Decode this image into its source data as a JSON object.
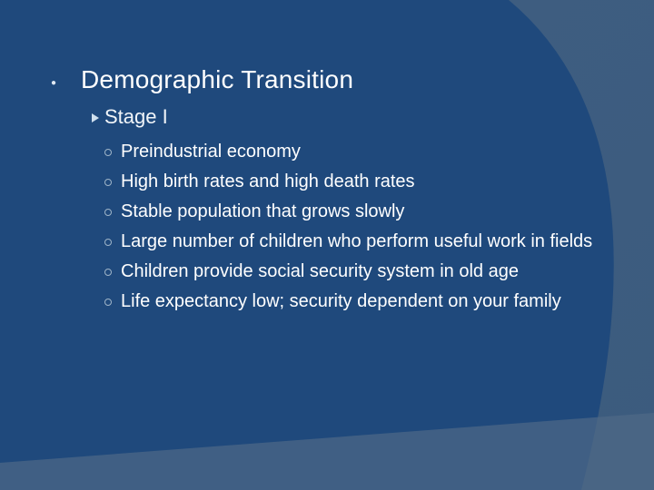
{
  "slide": {
    "title": "Demographic Transition",
    "subtitle": "Stage I",
    "items": [
      "Preindustrial economy",
      "High birth rates and high death rates",
      "Stable population that grows slowly",
      "Large number of children who perform useful work in fields",
      "Children provide social security system in old age",
      "Life expectancy low; security dependent on your family"
    ]
  },
  "colors": {
    "background": "#3b5a7d",
    "panel": "#1e4a7f",
    "text": "#ffffff"
  }
}
